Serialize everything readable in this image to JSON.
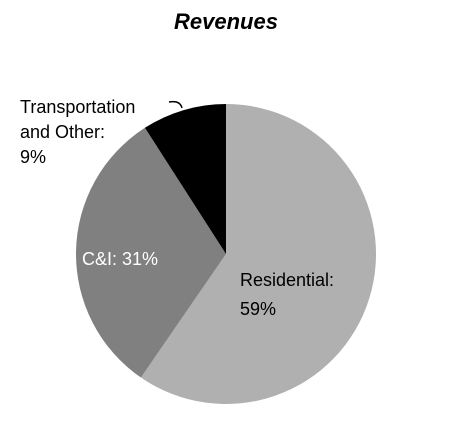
{
  "chart_data": {
    "type": "pie",
    "title": "Revenues",
    "slices": [
      {
        "label": "Residential",
        "value": 59,
        "display": "59%",
        "color": "#b0b0b0",
        "label_color": "#000000"
      },
      {
        "label": "C&I",
        "value": 31,
        "display": "31%",
        "color": "#808080",
        "label_color": "#ffffff"
      },
      {
        "label": "Transportation and Other",
        "value": 9,
        "display": "9%",
        "color": "#000000",
        "label_color": "#000000"
      }
    ],
    "start": "12 o'clock",
    "direction": "clockwise",
    "legend": "none"
  }
}
